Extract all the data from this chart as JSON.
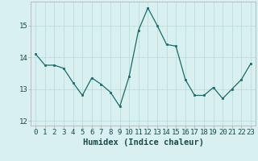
{
  "x": [
    0,
    1,
    2,
    3,
    4,
    5,
    6,
    7,
    8,
    9,
    10,
    11,
    12,
    13,
    14,
    15,
    16,
    17,
    18,
    19,
    20,
    21,
    22,
    23
  ],
  "y": [
    14.1,
    13.75,
    13.75,
    13.65,
    13.2,
    12.8,
    13.35,
    13.15,
    12.9,
    12.45,
    13.4,
    14.85,
    15.55,
    15.0,
    14.4,
    14.35,
    13.3,
    12.8,
    12.8,
    13.05,
    12.7,
    13.0,
    13.3,
    13.8
  ],
  "line_color": "#1a6b6b",
  "marker_color": "#1a6b6b",
  "bg_color": "#d8f0f0",
  "grid_color": "#b8d8d8",
  "xlabel": "Humidex (Indice chaleur)",
  "xlim": [
    -0.5,
    23.5
  ],
  "ylim": [
    11.85,
    15.75
  ],
  "yticks": [
    12,
    13,
    14,
    15
  ],
  "xtick_labels": [
    "0",
    "1",
    "2",
    "3",
    "4",
    "5",
    "6",
    "7",
    "8",
    "9",
    "10",
    "11",
    "12",
    "13",
    "14",
    "15",
    "16",
    "17",
    "18",
    "19",
    "20",
    "21",
    "22",
    "23"
  ],
  "fontsize_ticks": 6.5,
  "fontsize_xlabel": 7.5
}
